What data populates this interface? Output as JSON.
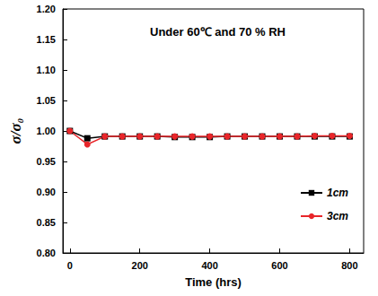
{
  "chart_data": {
    "type": "line",
    "title": "Under 60℃ and 70 % RH",
    "x_label": "Time (hrs)",
    "y_label": "σ/σ₀",
    "x": [
      0,
      50,
      100,
      150,
      200,
      250,
      300,
      350,
      400,
      450,
      500,
      550,
      600,
      650,
      700,
      750,
      800
    ],
    "series": [
      {
        "name": "1cm",
        "color": "#000000",
        "marker": "square",
        "line_style": "solid",
        "values": [
          1.0,
          0.988,
          0.991,
          0.991,
          0.991,
          0.991,
          0.99,
          0.99,
          0.99,
          0.991,
          0.991,
          0.991,
          0.991,
          0.991,
          0.991,
          0.991,
          0.991
        ]
      },
      {
        "name": "3cm",
        "color": "#e8262a",
        "marker": "circle",
        "line_style": "solid",
        "values": [
          1.0,
          0.978,
          0.991,
          0.991,
          0.991,
          0.991,
          0.991,
          0.991,
          0.991,
          0.991,
          0.991,
          0.991,
          0.991,
          0.991,
          0.992,
          0.992,
          0.992
        ]
      }
    ],
    "xlim": [
      -20,
      840
    ],
    "xticks": [
      0,
      200,
      400,
      600,
      800
    ],
    "ylim": [
      0.8,
      1.2
    ],
    "yticks": [
      {
        "value": 0.8,
        "label": "0.80"
      },
      {
        "value": 0.85,
        "label": "0.85"
      },
      {
        "value": 0.9,
        "label": "0.90"
      },
      {
        "value": 0.95,
        "label": "0.95"
      },
      {
        "value": 1.0,
        "label": "1.00"
      },
      {
        "value": 1.05,
        "label": "1.05"
      },
      {
        "value": 1.1,
        "label": "1.10"
      },
      {
        "value": 1.15,
        "label": "1.15"
      },
      {
        "value": 1.2,
        "label": "1.20"
      }
    ],
    "grid": false,
    "legend": "lower right"
  }
}
